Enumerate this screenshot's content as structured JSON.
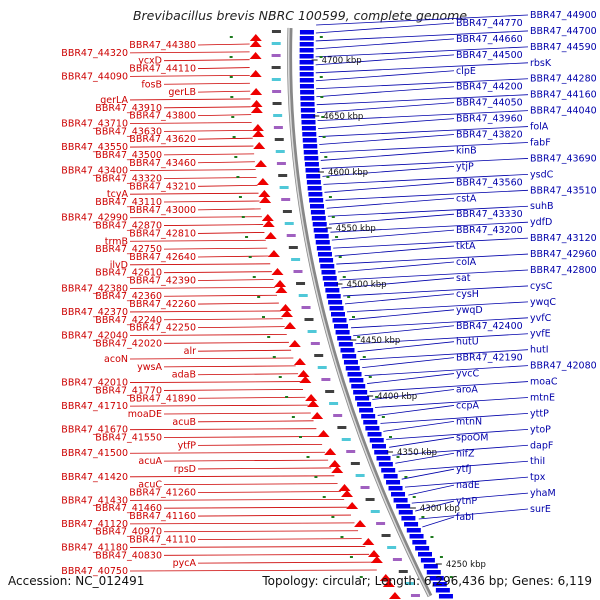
{
  "title": "Brevibacillus brevis NBRC 100599, complete genome",
  "footer": {
    "accession": "Accession: NC_012491",
    "topology": "Topology: circular; Length: 6,296,436 bp; Genes: 6,119"
  },
  "colors": {
    "left_genes": "#cc0000",
    "right_genes": "#0000aa",
    "strand_plus": "#ee0000",
    "strand_minus": "#0000ee",
    "backbone": "#888888",
    "tick": "#1e7a1e"
  },
  "kbp_ticks": [
    "4700 kbp",
    "4650 kbp",
    "4600 kbp",
    "4550 kbp",
    "4500 kbp",
    "4450 kbp",
    "4400 kbp",
    "4350 kbp",
    "4300 kbp",
    "4250 kbp"
  ],
  "left_labels": [
    "BBR47_44380",
    "BBR47_44320",
    "ycxD",
    "BBR47_44110",
    "BBR47_44090",
    "fosB",
    "gerLB",
    "gerLA",
    "BBR47_43910",
    "BBR47_43800",
    "BBR47_43710",
    "BBR47_43630",
    "BBR47_43620",
    "BBR47_43550",
    "BBR47_43500",
    "BBR47_43460",
    "BBR47_43400",
    "BBR47_43320",
    "BBR47_43210",
    "tcyA",
    "BBR47_43110",
    "BBR47_43000",
    "BBR47_42990",
    "BBR47_42870",
    "BBR47_42810",
    "trmB",
    "BBR47_42750",
    "BBR47_42640",
    "ilvD",
    "BBR47_42610",
    "BBR47_42390",
    "BBR47_42380",
    "BBR47_42360",
    "BBR47_42260",
    "BBR47_42370",
    "BBR47_42240",
    "BBR47_42250",
    "BBR47_42040",
    "BBR47_42020",
    "alr",
    "acoN",
    "ywsA",
    "adaB",
    "BBR47_42010",
    "BBR47_41770",
    "BBR47_41890",
    "BBR47_41710",
    "moaDE",
    "acuB",
    "BBR47_41670",
    "BBR47_41550",
    "ytfP",
    "BBR47_41500",
    "acuA",
    "rpsD",
    "BBR47_41420",
    "acuC",
    "BBR47_41260",
    "BBR47_41430",
    "BBR47_41460",
    "BBR47_41160",
    "BBR47_41120",
    "BBR47_40970",
    "BBR47_41110",
    "BBR47_41180",
    "BBR47_40830",
    "pycA",
    "BBR47_40750"
  ],
  "right_labels": [
    "BBR47_44900",
    "BBR47_44770",
    "BBR47_44700",
    "BBR47_44660",
    "BBR47_44590",
    "BBR47_44500",
    "rbsK",
    "clpE",
    "BBR47_44280",
    "BBR47_44200",
    "BBR47_44160",
    "BBR47_44050",
    "BBR47_44040",
    "BBR47_43960",
    "folA",
    "BBR47_43820",
    "fabF",
    "kinB",
    "BBR47_43690",
    "ytjP",
    "ysdC",
    "BBR47_43560",
    "BBR47_43510",
    "cstA",
    "suhB",
    "BBR47_43330",
    "ydfD",
    "BBR47_43200",
    "BBR47_43120",
    "tktA",
    "BBR47_42960",
    "colA",
    "BBR47_42800",
    "sat",
    "cysC",
    "cysH",
    "ywqC",
    "ywqD",
    "yvfC",
    "BBR47_42400",
    "yvfE",
    "hutU",
    "hutI",
    "BBR47_42190",
    "BBR47_42080",
    "yvcC",
    "moaC",
    "aroA",
    "mtnE",
    "ccpA",
    "yttP",
    "mtnN",
    "ytoP",
    "spoOM",
    "dapF",
    "nifZ",
    "thiI",
    "ytfJ",
    "tpx",
    "nadE",
    "yhaM",
    "ytnP",
    "surE",
    "fabI"
  ]
}
